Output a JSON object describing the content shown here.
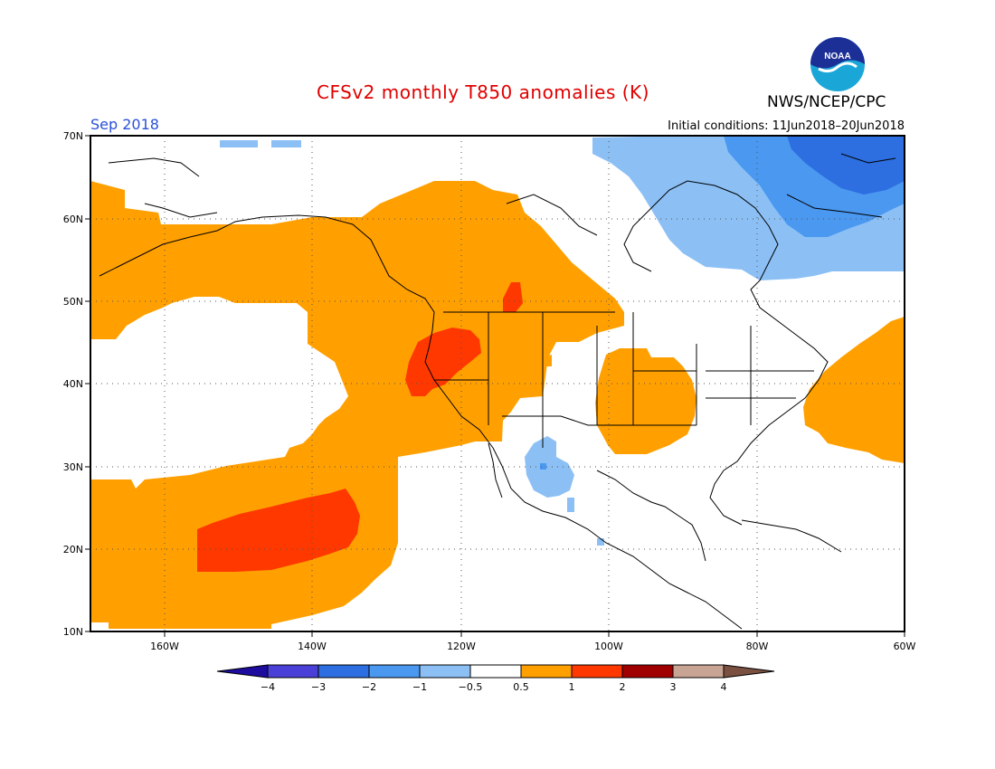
{
  "header": {
    "title": "CFSv2 monthly T850 anomalies (K)",
    "agency": "NWS/NCEP/CPC",
    "month": "Sep 2018",
    "initial_conditions": "Initial conditions: 11Jun2018–20Jun2018",
    "logo_text": "NOAA"
  },
  "map": {
    "lon_range": [
      -172,
      -60
    ],
    "lat_range": [
      10,
      70
    ],
    "lon_ticks": [
      "160W",
      "140W",
      "120W",
      "100W",
      "80W",
      "60W"
    ],
    "lat_ticks": [
      "10N",
      "20N",
      "30N",
      "40N",
      "50N",
      "60N",
      "70N"
    ]
  },
  "colorbar": {
    "labels": [
      "−4",
      "−3",
      "−2",
      "−1",
      "−0.5",
      "0.5",
      "1",
      "2",
      "3",
      "4"
    ],
    "colors": [
      "#1e0c9e",
      "#4a3fd6",
      "#2d6ee0",
      "#4a98f0",
      "#8cc0f5",
      "#ffffff",
      "#ffa000",
      "#ff3800",
      "#a00000",
      "#c8a494",
      "#7a5040"
    ]
  }
}
